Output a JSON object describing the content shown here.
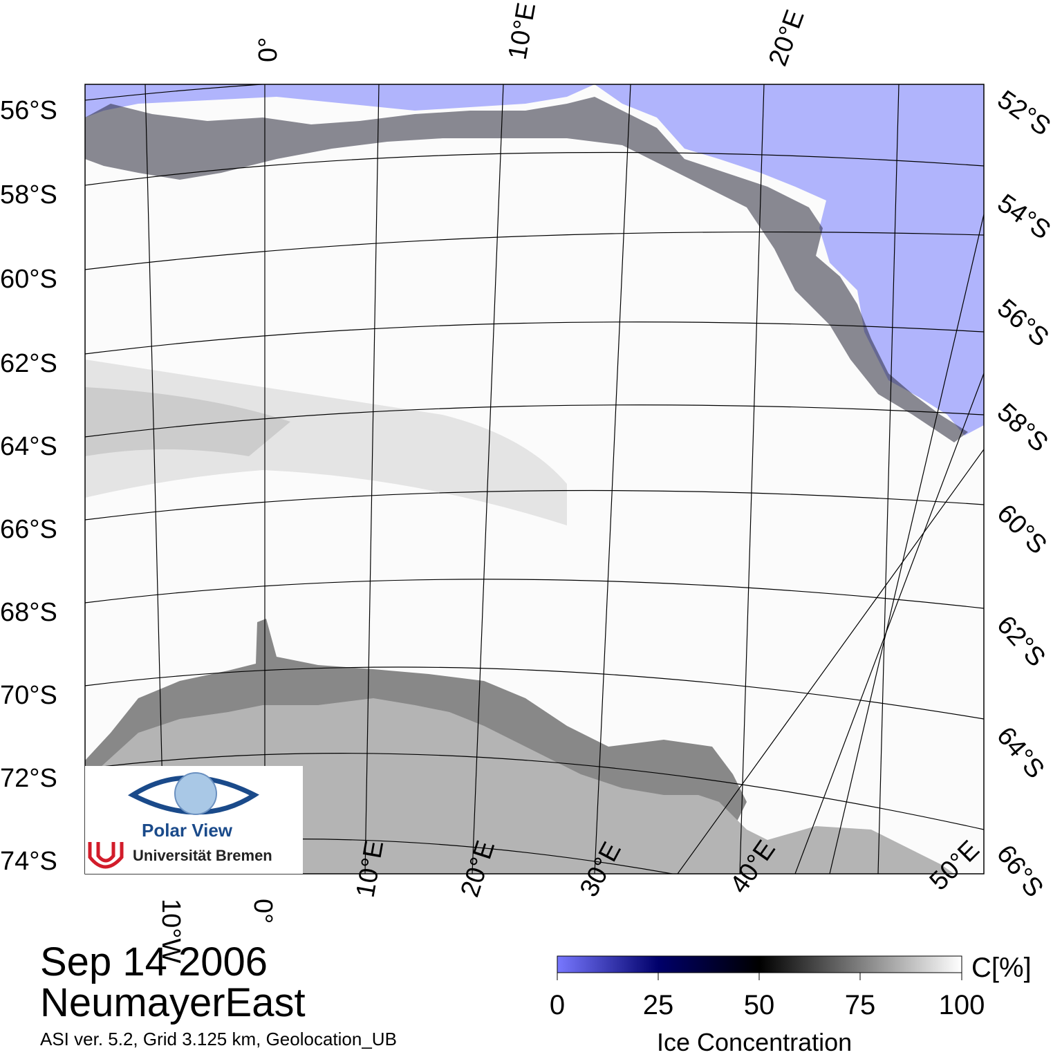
{
  "map": {
    "colors": {
      "open_water": "#b0b4fc",
      "land_shelf": "#b4b4b4",
      "ice_shelf": "#888888",
      "grid": "#000000"
    },
    "lat_labels_left": [
      "56°S",
      "58°S",
      "60°S",
      "62°S",
      "64°S",
      "66°S",
      "68°S",
      "70°S",
      "72°S",
      "74°S"
    ],
    "lat_labels_right": [
      "52°S",
      "54°S",
      "56°S",
      "58°S",
      "60°S",
      "62°S",
      "64°S",
      "66°S"
    ],
    "lon_labels_top": [
      "0°",
      "10°E",
      "20°E"
    ],
    "lon_labels_bottom": [
      "10°W",
      "0°",
      "10°E",
      "20°E",
      "30°E",
      "40°E",
      "50°E"
    ]
  },
  "logo": {
    "name": "Polar View",
    "institution": "Universität Bremen"
  },
  "caption": {
    "date": "Sep 14 2006",
    "region": "NeumayerEast",
    "info": "ASI ver. 5.2,  Grid 3.125 km, Geolocation_UB"
  },
  "colorbar": {
    "ticks": [
      "0",
      "25",
      "50",
      "75",
      "100"
    ],
    "unit": "C[%]",
    "title": "Ice Concentration",
    "colors": [
      "#7878ff",
      "#000060",
      "#000000",
      "#ffffff"
    ]
  }
}
